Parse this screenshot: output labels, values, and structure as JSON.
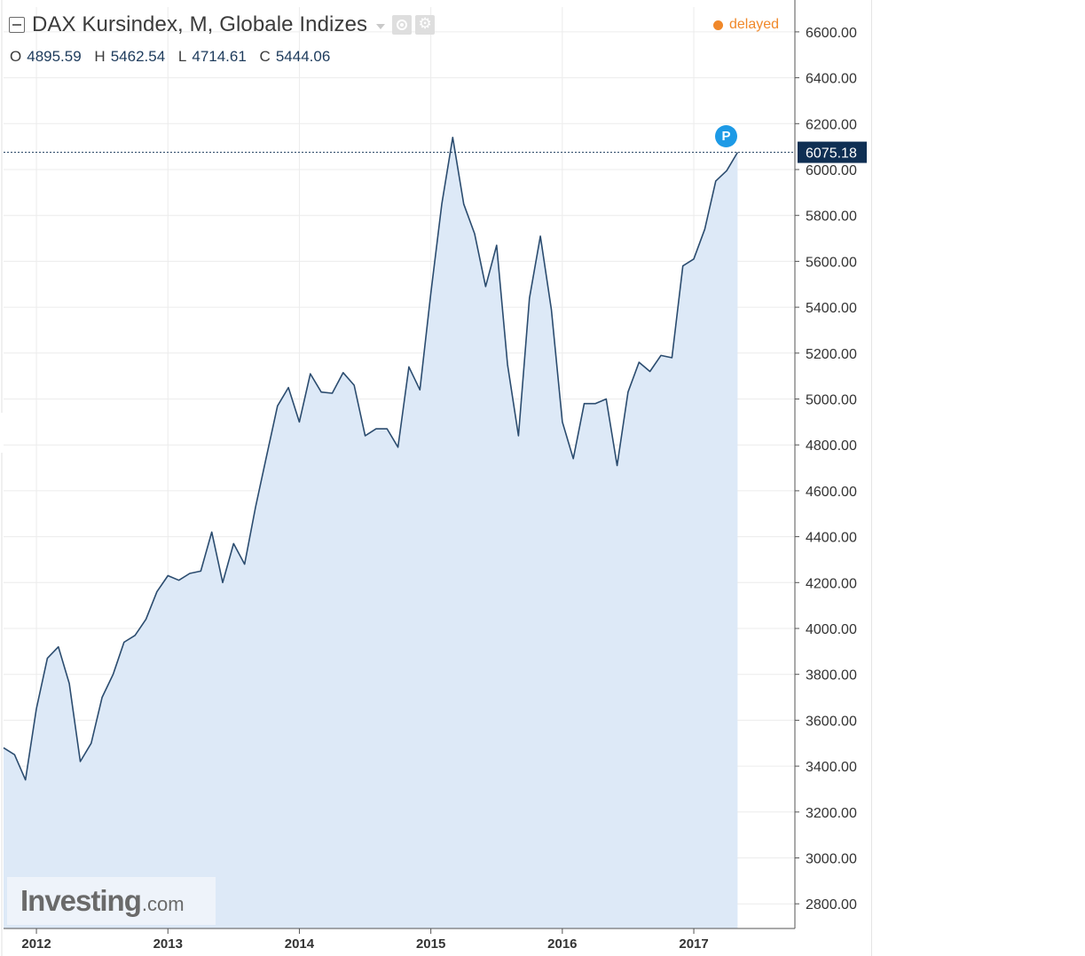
{
  "header": {
    "title": "DAX Kursindex, M, Globale Indizes",
    "delayed_label": "delayed",
    "ohlc": [
      {
        "key": "O",
        "value": "4895.59"
      },
      {
        "key": "H",
        "value": "5462.54"
      },
      {
        "key": "L",
        "value": "4714.61"
      },
      {
        "key": "C",
        "value": "5444.06"
      }
    ]
  },
  "branding": {
    "name": "Investing",
    "suffix": ".com"
  },
  "marker": {
    "label": "P"
  },
  "colors": {
    "line": "#2b4c6f",
    "area_fill": "#dde9f7",
    "price_label_bg": "#0f2f53",
    "delayed": "#f0882a",
    "marker": "#1d9ae6"
  },
  "chart_data": {
    "type": "area",
    "title": "DAX Kursindex, M, Globale Indizes",
    "interval": "monthly",
    "x_labels": [
      "2012",
      "2013",
      "2014",
      "2015",
      "2016",
      "2017"
    ],
    "x_range": [
      "2011-10",
      "2017-10"
    ],
    "ylim": [
      2700,
      6700
    ],
    "y_ticks": [
      2800,
      3000,
      3200,
      3400,
      3600,
      3800,
      4000,
      4200,
      4400,
      4600,
      4800,
      5000,
      5200,
      5400,
      5600,
      5800,
      6000,
      6200,
      6400,
      6600
    ],
    "y_tick_labels": [
      "2800.00",
      "3000.00",
      "3200.00",
      "3400.00",
      "3600.00",
      "3800.00",
      "4000.00",
      "4200.00",
      "4400.00",
      "4600.00",
      "4800.00",
      "5000.00",
      "5200.00",
      "5400.00",
      "5600.00",
      "5800.00",
      "6000.00",
      "6200.00",
      "6400.00",
      "6600.00"
    ],
    "last_value": 6075.18,
    "last_value_label": "6075.18",
    "grid": true,
    "series": [
      {
        "points": [
          [
            "2011-10",
            3480
          ],
          [
            "2011-11",
            3450
          ],
          [
            "2011-12",
            3340
          ],
          [
            "2012-01",
            3650
          ],
          [
            "2012-02",
            3870
          ],
          [
            "2012-03",
            3920
          ],
          [
            "2012-04",
            3760
          ],
          [
            "2012-05",
            3420
          ],
          [
            "2012-06",
            3500
          ],
          [
            "2012-07",
            3700
          ],
          [
            "2012-08",
            3800
          ],
          [
            "2012-09",
            3940
          ],
          [
            "2012-10",
            3970
          ],
          [
            "2012-11",
            4040
          ],
          [
            "2012-12",
            4160
          ],
          [
            "2013-01",
            4230
          ],
          [
            "2013-02",
            4210
          ],
          [
            "2013-03",
            4240
          ],
          [
            "2013-04",
            4250
          ],
          [
            "2013-05",
            4420
          ],
          [
            "2013-06",
            4200
          ],
          [
            "2013-07",
            4370
          ],
          [
            "2013-08",
            4280
          ],
          [
            "2013-09",
            4530
          ],
          [
            "2013-10",
            4750
          ],
          [
            "2013-11",
            4970
          ],
          [
            "2013-12",
            5050
          ],
          [
            "2014-01",
            4900
          ],
          [
            "2014-02",
            5110
          ],
          [
            "2014-03",
            5030
          ],
          [
            "2014-04",
            5025
          ],
          [
            "2014-05",
            5115
          ],
          [
            "2014-06",
            5060
          ],
          [
            "2014-07",
            4840
          ],
          [
            "2014-08",
            4870
          ],
          [
            "2014-09",
            4870
          ],
          [
            "2014-10",
            4790
          ],
          [
            "2014-11",
            5140
          ],
          [
            "2014-12",
            5040
          ],
          [
            "2015-01",
            5460
          ],
          [
            "2015-02",
            5850
          ],
          [
            "2015-03",
            6140
          ],
          [
            "2015-04",
            5850
          ],
          [
            "2015-05",
            5720
          ],
          [
            "2015-06",
            5490
          ],
          [
            "2015-07",
            5670
          ],
          [
            "2015-08",
            5150
          ],
          [
            "2015-09",
            4840
          ],
          [
            "2015-10",
            5440
          ],
          [
            "2015-11",
            5710
          ],
          [
            "2015-12",
            5390
          ],
          [
            "2016-01",
            4900
          ],
          [
            "2016-02",
            4740
          ],
          [
            "2016-03",
            4980
          ],
          [
            "2016-04",
            4980
          ],
          [
            "2016-05",
            5000
          ],
          [
            "2016-06",
            4710
          ],
          [
            "2016-07",
            5030
          ],
          [
            "2016-08",
            5160
          ],
          [
            "2016-09",
            5120
          ],
          [
            "2016-10",
            5190
          ],
          [
            "2016-11",
            5180
          ],
          [
            "2016-12",
            5580
          ],
          [
            "2017-01",
            5610
          ],
          [
            "2017-02",
            5740
          ],
          [
            "2017-03",
            5950
          ],
          [
            "2017-04",
            5995
          ],
          [
            "2017-05",
            6075.18
          ]
        ]
      }
    ]
  }
}
